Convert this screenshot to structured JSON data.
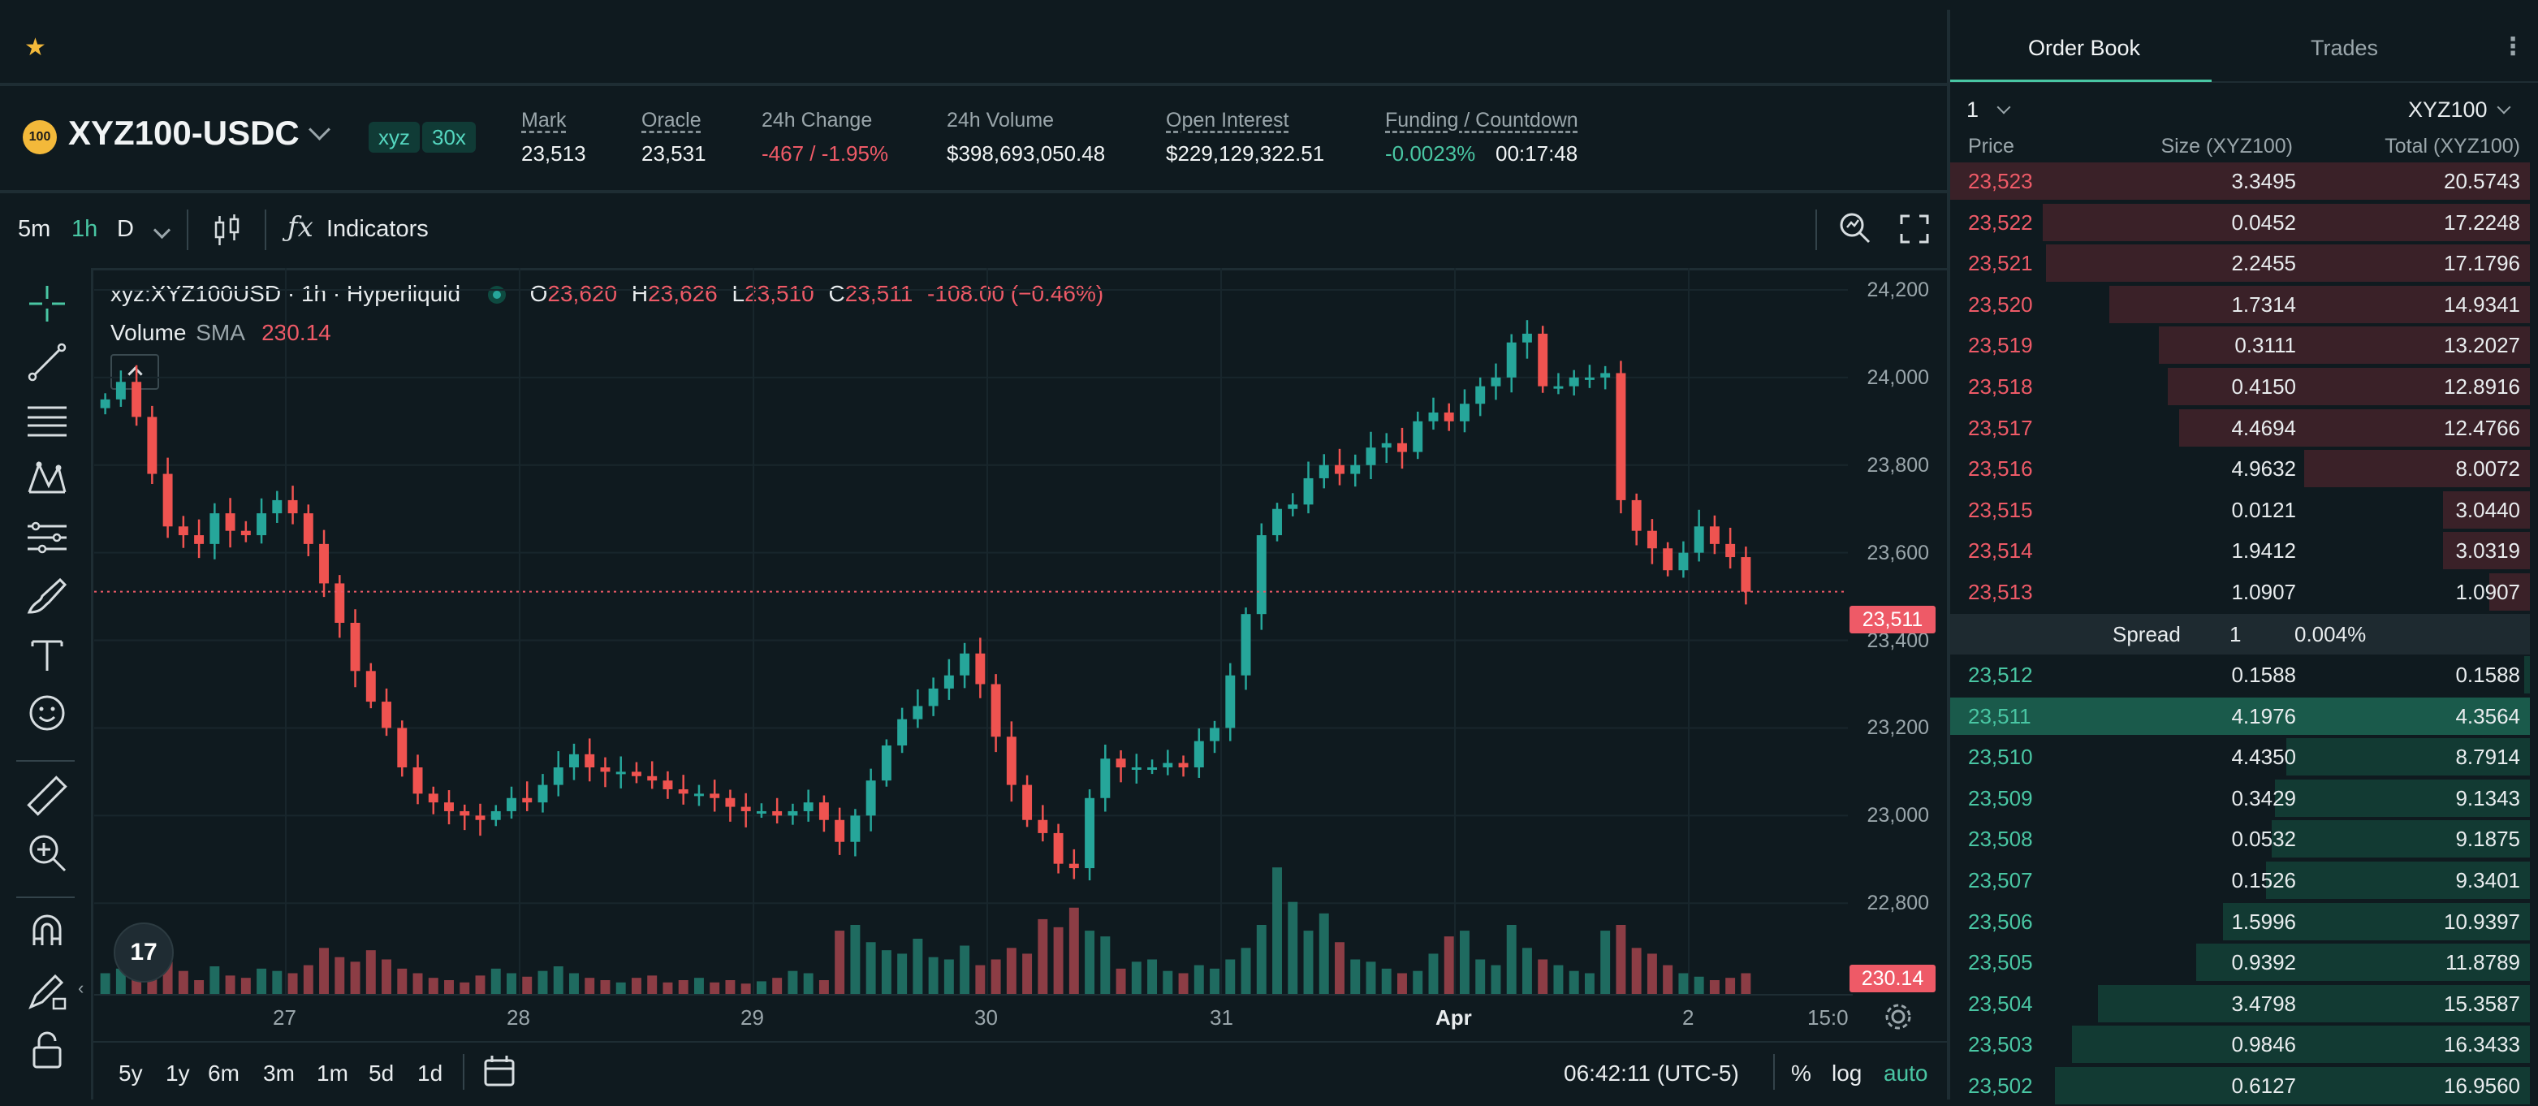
{
  "header": {
    "pair": "XYZ100-USDC",
    "coin_badge": "100",
    "tags": [
      "xyz",
      "30x"
    ],
    "stats": [
      {
        "label": "Mark",
        "value": "23,513",
        "underline": true
      },
      {
        "label": "Oracle",
        "value": "23,531",
        "underline": true
      },
      {
        "label": "24h Change",
        "value": "-467 / -1.95%",
        "underline": false
      },
      {
        "label": "24h Volume",
        "value": "$398,693,050.48",
        "underline": false
      },
      {
        "label": "Open Interest",
        "value": "$229,129,322.51",
        "underline": true
      },
      {
        "label": "Funding / Countdown",
        "value": "-0.0023%",
        "value2": "00:17:48",
        "underline": true
      }
    ]
  },
  "toolbar": {
    "timeframes": [
      "5m",
      "1h",
      "D"
    ],
    "active_timeframe": "1h",
    "indicators_label": "Indicators"
  },
  "legend": {
    "symbol": "xyz:XYZ100USD · 1h · Hyperliquid",
    "o_label": "O",
    "o": "23,620",
    "h_label": "H",
    "h": "23,626",
    "l_label": "L",
    "l": "23,510",
    "c_label": "C",
    "c": "23,511",
    "change": "-108.00 (−0.46%)",
    "volume_label": "Volume",
    "sma_label": "SMA",
    "sma_value": "230.14"
  },
  "chart_data": {
    "type": "candlestick",
    "y_ticks": [
      "24,200",
      "24,000",
      "23,800",
      "23,600",
      "23,400",
      "23,200",
      "23,000",
      "22,800"
    ],
    "y_tick_values": [
      24200,
      24000,
      23800,
      23600,
      23400,
      23200,
      23000,
      22800
    ],
    "ylim": [
      22730,
      24250
    ],
    "x_ticks": [
      "27",
      "28",
      "29",
      "30",
      "31",
      "Apr",
      "2",
      "15:0"
    ],
    "last_price": "23,511",
    "volume_sma": "230.14",
    "closes": [
      23950,
      23990,
      23910,
      23780,
      23660,
      23640,
      23620,
      23690,
      23650,
      23640,
      23690,
      23720,
      23690,
      23620,
      23530,
      23440,
      23330,
      23260,
      23200,
      23110,
      23050,
      23030,
      23010,
      23000,
      22990,
      23010,
      23040,
      23030,
      23070,
      23110,
      23140,
      23110,
      23100,
      23100,
      23090,
      23080,
      23060,
      23050,
      23050,
      23040,
      23020,
      23010,
      23010,
      23000,
      23010,
      23030,
      22990,
      22940,
      23000,
      23080,
      23160,
      23220,
      23250,
      23290,
      23320,
      23370,
      23300,
      23180,
      23070,
      22990,
      22960,
      22890,
      22880,
      23040,
      23130,
      23110,
      23110,
      23110,
      23120,
      23110,
      23170,
      23200,
      23320,
      23460,
      23640,
      23700,
      23710,
      23770,
      23800,
      23780,
      23800,
      23840,
      23850,
      23830,
      23900,
      23920,
      23900,
      23940,
      23980,
      24000,
      24080,
      24100,
      23980,
      23980,
      24000,
      24000,
      24010,
      23720,
      23650,
      23610,
      23560,
      23600,
      23660,
      23620,
      23590,
      23511
    ],
    "volumes": [
      18,
      22,
      15,
      35,
      28,
      20,
      12,
      24,
      16,
      14,
      22,
      20,
      18,
      25,
      40,
      32,
      28,
      38,
      30,
      22,
      18,
      14,
      12,
      10,
      16,
      22,
      18,
      15,
      20,
      24,
      18,
      14,
      12,
      10,
      14,
      16,
      10,
      12,
      14,
      10,
      12,
      9,
      11,
      14,
      20,
      18,
      12,
      55,
      60,
      45,
      38,
      35,
      48,
      32,
      30,
      42,
      25,
      30,
      40,
      35,
      65,
      58,
      75,
      55,
      50,
      22,
      28,
      30,
      20,
      18,
      25,
      22,
      30,
      40,
      60,
      110,
      80,
      55,
      70,
      45,
      30,
      28,
      22,
      18,
      20,
      35,
      50,
      55,
      30,
      25,
      60,
      40,
      30,
      25,
      20,
      18,
      55,
      60,
      40,
      35,
      25,
      18,
      15,
      12,
      14,
      18
    ],
    "volume_ylim": [
      0,
      120
    ]
  },
  "x_axis": {
    "labels": [
      "27",
      "28",
      "29",
      "30",
      "31",
      "Apr",
      "2",
      "15:0"
    ]
  },
  "bottom": {
    "ranges": [
      "5y",
      "1y",
      "6m",
      "3m",
      "1m",
      "5d",
      "1d"
    ],
    "clock": "06:42:11 (UTC-5)",
    "pct": "%",
    "log": "log",
    "auto": "auto"
  },
  "orderbook": {
    "tabs": [
      "Order Book",
      "Trades"
    ],
    "grouping": "1",
    "unit": "XYZ100",
    "col_price": "Price",
    "col_size": "Size (XYZ100)",
    "col_total": "Total (XYZ100)",
    "asks": [
      {
        "price": "23,523",
        "size": "3.3495",
        "total": "20.5743",
        "depth": 1.0
      },
      {
        "price": "23,522",
        "size": "0.0452",
        "total": "17.2248",
        "depth": 0.84
      },
      {
        "price": "23,521",
        "size": "2.2455",
        "total": "17.1796",
        "depth": 0.835
      },
      {
        "price": "23,520",
        "size": "1.7314",
        "total": "14.9341",
        "depth": 0.725
      },
      {
        "price": "23,519",
        "size": "0.3111",
        "total": "13.2027",
        "depth": 0.64
      },
      {
        "price": "23,518",
        "size": "0.4150",
        "total": "12.8916",
        "depth": 0.625
      },
      {
        "price": "23,517",
        "size": "4.4694",
        "total": "12.4766",
        "depth": 0.605
      },
      {
        "price": "23,516",
        "size": "4.9632",
        "total": "8.0072",
        "depth": 0.39
      },
      {
        "price": "23,515",
        "size": "0.0121",
        "total": "3.0440",
        "depth": 0.15
      },
      {
        "price": "23,514",
        "size": "1.9412",
        "total": "3.0319",
        "depth": 0.15
      },
      {
        "price": "23,513",
        "size": "1.0907",
        "total": "1.0907",
        "depth": 0.07
      }
    ],
    "spread_label": "Spread",
    "spread_value": "1",
    "spread_pct": "0.004%",
    "bids": [
      {
        "price": "23,512",
        "size": "0.1588",
        "total": "0.1588",
        "depth": 0.01
      },
      {
        "price": "23,511",
        "size": "4.1976",
        "total": "4.3564",
        "depth": 1.0,
        "highlight": true
      },
      {
        "price": "23,510",
        "size": "4.4350",
        "total": "8.7914",
        "depth": 0.42
      },
      {
        "price": "23,509",
        "size": "0.3429",
        "total": "9.1343",
        "depth": 0.44
      },
      {
        "price": "23,508",
        "size": "0.0532",
        "total": "9.1875",
        "depth": 0.445
      },
      {
        "price": "23,507",
        "size": "0.1526",
        "total": "9.3401",
        "depth": 0.455
      },
      {
        "price": "23,506",
        "size": "1.5996",
        "total": "10.9397",
        "depth": 0.53
      },
      {
        "price": "23,505",
        "size": "0.9392",
        "total": "11.8789",
        "depth": 0.575
      },
      {
        "price": "23,504",
        "size": "3.4798",
        "total": "15.3587",
        "depth": 0.745
      },
      {
        "price": "23,503",
        "size": "0.9846",
        "total": "16.3433",
        "depth": 0.79
      },
      {
        "price": "23,502",
        "size": "0.6127",
        "total": "16.9560",
        "depth": 0.82
      }
    ]
  },
  "colors": {
    "up": "#26a69a",
    "down": "#ef5350",
    "ask_bar": "#3a2128",
    "bid_bar": "#123a33",
    "accent": "#49c6a3"
  },
  "icons": [
    "star-icon",
    "chevron-down-icon",
    "candle-type-icon",
    "fx-icon",
    "zoom-icon",
    "fullscreen-icon",
    "crosshair-icon",
    "trendline-icon",
    "fib-icon",
    "pattern-icon",
    "projection-icon",
    "brush-icon",
    "text-icon",
    "emoji-icon",
    "ruler-icon",
    "zoom-in-icon",
    "magnet-icon",
    "lock-draw-icon",
    "lock-icon",
    "calendar-icon",
    "settings-icon",
    "more-icon"
  ]
}
